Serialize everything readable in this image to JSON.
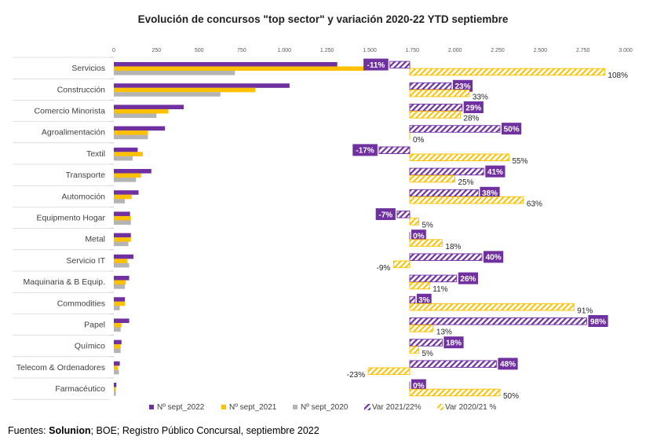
{
  "chart_data": {
    "type": "bar",
    "title": "Evolución de concursos \"top sector\" y variación 2020-22 YTD  septiembre",
    "x_ticks": [
      "0",
      "250",
      "500",
      "750",
      "1.000",
      "1.250",
      "1.500",
      "1.750",
      "2.000",
      "2.250",
      "2.500",
      "2.750",
      "3.000"
    ],
    "xlim": [
      0,
      3000
    ],
    "categories": [
      "Servicios",
      "Construcción",
      "Comercio Minorista",
      "Agroalimentación",
      "Textil",
      "Transporte",
      "Automoción",
      "Equipmento Hogar",
      "Metal",
      "Servicio  IT",
      "Maquinaria & B Equip.",
      "Commodities",
      "Papel",
      "Químico",
      "Telecom & Ordenadores",
      "Farmacéutico"
    ],
    "series": [
      {
        "name": "Nº sept_2022",
        "color": "#7030a0",
        "values": [
          1310,
          1030,
          410,
          300,
          140,
          220,
          145,
          95,
          100,
          115,
          90,
          65,
          90,
          45,
          35,
          15
        ]
      },
      {
        "name": "Nº sept_2021",
        "color": "#ffc000",
        "values": [
          1475,
          830,
          320,
          200,
          170,
          160,
          105,
          100,
          100,
          80,
          70,
          65,
          45,
          40,
          25,
          12
        ]
      },
      {
        "name": "Nº sept_2020",
        "color": "#b4b4b4",
        "values": [
          710,
          625,
          250,
          200,
          110,
          130,
          65,
          100,
          85,
          90,
          65,
          35,
          40,
          40,
          30,
          12
        ]
      }
    ],
    "variations": [
      {
        "name": "Var 2021/22%",
        "color": "#7030a0",
        "values": [
          -11,
          23,
          29,
          50,
          -17,
          41,
          38,
          -7,
          0,
          40,
          26,
          3,
          98,
          18,
          48,
          0
        ],
        "labels": [
          "-11%",
          "23%",
          "29%",
          "50%",
          "-17%",
          "41%",
          "38%",
          "-7%",
          "0%",
          "40%",
          "26%",
          "3%",
          "98%",
          "18%",
          "48%",
          "0%"
        ]
      },
      {
        "name": "Var 2020/21 %",
        "color": "#ffc000",
        "values": [
          108,
          33,
          28,
          0,
          55,
          25,
          63,
          5,
          18,
          -9,
          11,
          91,
          13,
          5,
          -23,
          50
        ],
        "labels": [
          "108%",
          "33%",
          "28%",
          "0%",
          "55%",
          "25%",
          "63%",
          "5%",
          "18%",
          "-9%",
          "11%",
          "91%",
          "13%",
          "5%",
          "-23%",
          "50%"
        ]
      }
    ],
    "grid": false,
    "legend_position": "bottom"
  },
  "source": {
    "prefix": "Fuentes: ",
    "bold": "Solunion",
    "rest": "; BOE; Registro Público Concursal, septiembre 2022"
  }
}
